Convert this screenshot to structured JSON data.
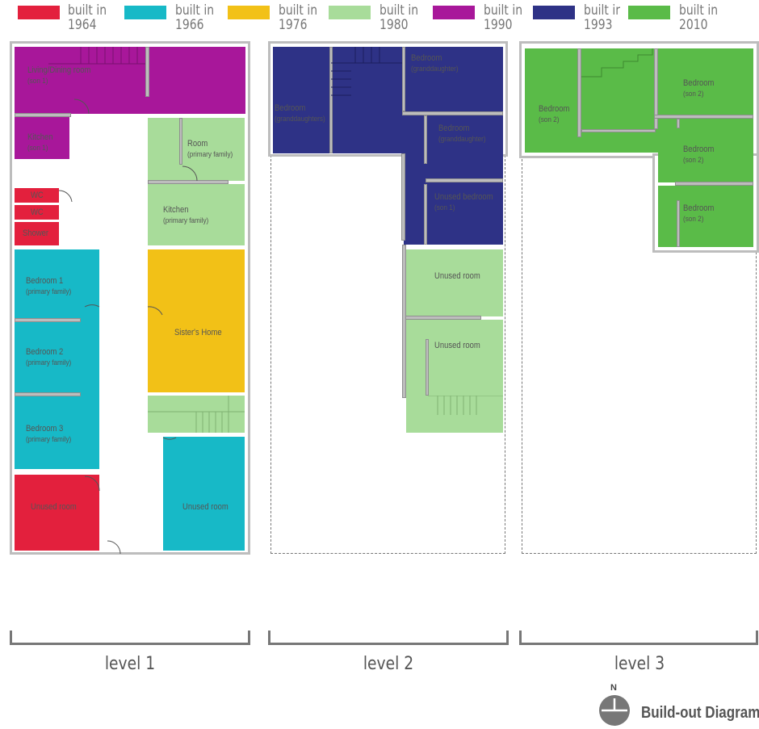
{
  "colors": {
    "built_1964": "#e3203d",
    "built_1966": "#17b9c7",
    "built_1976": "#f2c117",
    "built_1980": "#a8dc9a",
    "built_1990": "#a8179a",
    "built_1993": "#2e3286",
    "built_2010": "#5abb48",
    "wall": "#bdbdbd",
    "text": "#555555"
  },
  "legend": [
    {
      "line1": "built in",
      "line2": "1964"
    },
    {
      "line1": "built in",
      "line2": "1966"
    },
    {
      "line1": "built in",
      "line2": "1976"
    },
    {
      "line1": "built in",
      "line2": "1980"
    },
    {
      "line1": "built in",
      "line2": "1990"
    },
    {
      "line1": "built ir",
      "line2": "1993"
    },
    {
      "line1": "built in",
      "line2": "2010"
    }
  ],
  "level1": {
    "living": {
      "name": "Living/Dining room",
      "sub": "(son 1)"
    },
    "kitchen_son": {
      "name": "Kitchen",
      "sub": "(son 1)"
    },
    "room_primary": {
      "name": "Room",
      "sub": "(primary  family)"
    },
    "kitchen_primary": {
      "name": "Kitchen",
      "sub": "(primary family)"
    },
    "wc1": "WC",
    "wc2": "WC",
    "shower": "Shower",
    "bedroom1": {
      "name": "Bedroom 1",
      "sub": "(primary family)"
    },
    "bedroom2": {
      "name": "Bedroom 2",
      "sub": "(primary family)"
    },
    "bedroom3": {
      "name": "Bedroom 3",
      "sub": "(primary family)"
    },
    "sister": "Sister's Home",
    "unused_left": "Unused room",
    "unused_right": "Unused room"
  },
  "level2": {
    "bedroom_top": {
      "name": "Bedroom",
      "sub": "(granddaughter)"
    },
    "bedroom_left": {
      "name": "Bedroom",
      "sub": "(granddaughters)"
    },
    "bedroom_mid": {
      "name": "Bedroom",
      "sub": "(granddaughter)"
    },
    "unused_bedroom": {
      "name": "Unused bedroom",
      "sub": "(son 1)"
    },
    "unused1": "Unused room",
    "unused2": "Unused room"
  },
  "level3": {
    "bedroom_left": {
      "name": "Bedroom",
      "sub": "(son 2)"
    },
    "bedroom_top": {
      "name": "Bedroom",
      "sub": "(son 2)"
    },
    "bedroom_mid": {
      "name": "Bedroom",
      "sub": "(son 2)"
    },
    "bedroom_bot": {
      "name": "Bedroom",
      "sub": "(son 2)"
    }
  },
  "levels": {
    "l1": "level 1",
    "l2": "level 2",
    "l3": "level 3"
  },
  "north": "N",
  "title": "Build-out Diagram"
}
